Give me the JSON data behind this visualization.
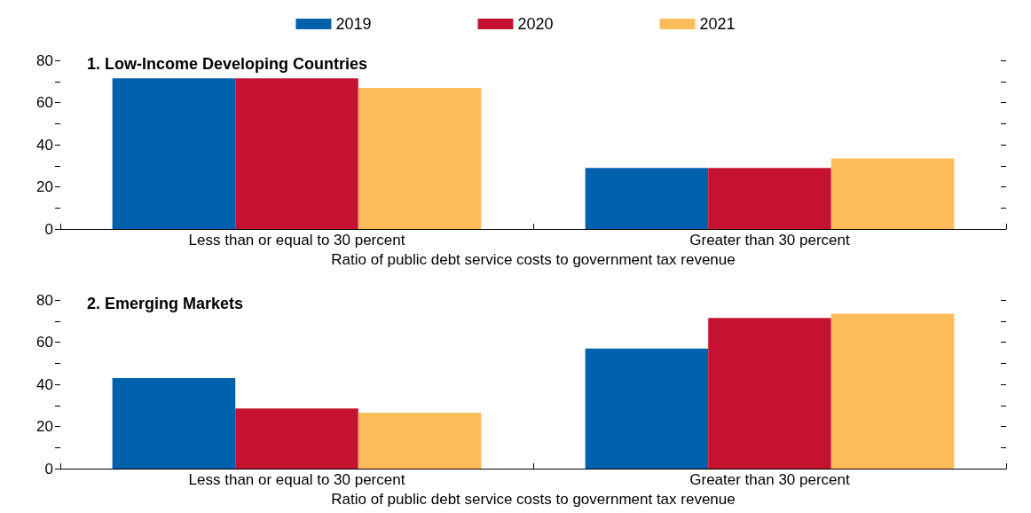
{
  "chart_data": [
    {
      "type": "bar",
      "title": "1. Low-Income Developing Countries",
      "xlabel": "Ratio of public debt service costs to government tax revenue",
      "categories": [
        "Less than or equal to 30 percent",
        "Greater than 30 percent"
      ],
      "series": [
        {
          "name": "2019",
          "color": "#0060ac",
          "values": [
            71.5,
            29
          ]
        },
        {
          "name": "2020",
          "color": "#c41230",
          "values": [
            71.5,
            29
          ]
        },
        {
          "name": "2021",
          "color": "#fdbb5a",
          "values": [
            67,
            33.5
          ]
        }
      ],
      "ylim": [
        0,
        80
      ],
      "yticks": [
        0,
        {
          "value": 10,
          "label": null
        },
        20,
        {
          "value": 30,
          "label": null
        },
        40,
        {
          "value": 50,
          "label": null
        },
        60,
        {
          "value": 70,
          "label": null
        },
        80
      ],
      "grid": false,
      "legend": "top"
    },
    {
      "type": "bar",
      "title": "2. Emerging Markets",
      "xlabel": "Ratio of public debt service costs to government tax revenue",
      "categories": [
        "Less than or equal to 30 percent",
        "Greater than 30 percent"
      ],
      "series": [
        {
          "color": "#0060ac",
          "values": [
            43,
            57
          ]
        },
        {
          "color": "#c41230",
          "values": [
            28.5,
            71.5
          ]
        },
        {
          "color": "#fdbb5a",
          "values": [
            26.5,
            73.5
          ]
        }
      ],
      "ylim": [
        0,
        80
      ],
      "yticks": [
        0,
        {
          "value": 10,
          "label": null
        },
        20,
        {
          "value": 30,
          "label": null
        },
        40,
        {
          "value": 50,
          "label": null
        },
        60,
        {
          "value": 70,
          "label": null
        },
        80
      ],
      "grid": false
    }
  ]
}
